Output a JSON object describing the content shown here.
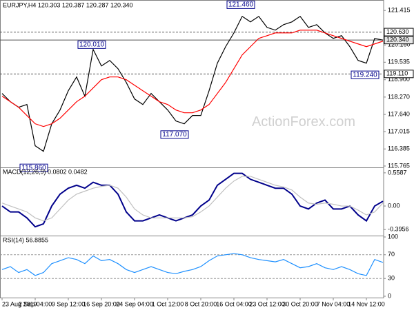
{
  "chart_data": [
    {
      "type": "line",
      "title": "EURJPY,H4  120.303 120.387 120.287 120.340",
      "watermark": "ActionForex.com",
      "categories": [
        "23 Aug 2019",
        null,
        null,
        null,
        "2 Sep 04:00",
        null,
        null,
        null,
        "9 Sep 12:00",
        null,
        null,
        null,
        "16 Sep 20:00",
        null,
        null,
        null,
        "24 Sep 04:00",
        null,
        null,
        null,
        "1 Oct 12:00",
        null,
        null,
        null,
        "8 Oct 20:00",
        null,
        null,
        null,
        "16 Oct 04:00",
        null,
        null,
        null,
        "23 Oct 12:00",
        null,
        null,
        null,
        "30 Oct 20:00",
        null,
        null,
        null,
        "7 Nov 04:00",
        null,
        null,
        null,
        "14 Nov 12:00",
        null,
        null
      ],
      "series": [
        {
          "color": "#000000",
          "values": [
            118.4,
            118.1,
            117.9,
            118.0,
            116.5,
            116.3,
            117.3,
            117.8,
            118.5,
            119.0,
            118.3,
            120.0,
            119.4,
            119.6,
            119.3,
            118.8,
            118.2,
            118.0,
            118.4,
            118.1,
            117.8,
            117.4,
            117.3,
            117.6,
            117.6,
            118.5,
            119.5,
            120.1,
            120.6,
            121.2,
            121.0,
            121.2,
            120.8,
            120.7,
            120.9,
            121.0,
            121.2,
            120.8,
            120.9,
            120.6,
            120.4,
            120.5,
            120.1,
            119.6,
            119.5,
            120.4,
            120.34
          ]
        },
        {
          "color": "#ff0000",
          "values": [
            118.3,
            118.1,
            117.9,
            117.6,
            117.3,
            117.2,
            117.3,
            117.5,
            117.8,
            118.1,
            118.3,
            118.6,
            118.9,
            119.0,
            119.0,
            118.9,
            118.7,
            118.5,
            118.3,
            118.1,
            118.0,
            117.8,
            117.7,
            117.7,
            117.8,
            118.0,
            118.4,
            118.8,
            119.3,
            119.8,
            120.1,
            120.4,
            120.5,
            120.6,
            120.6,
            120.6,
            120.7,
            120.7,
            120.7,
            120.6,
            120.5,
            120.4,
            120.3,
            120.2,
            120.1,
            120.2,
            120.3
          ]
        }
      ],
      "ylim": [
        115.74,
        121.72
      ],
      "yticks": [
        121.415,
        {
          "value": 120.16,
          "label": "120.160"
        },
        119.535,
        {
          "value": 118.9,
          "label": "118.900"
        },
        {
          "value": 118.27,
          "label": "118.270"
        },
        {
          "value": 117.64,
          "label": "117.640"
        },
        117.015,
        116.385,
        115.765
      ],
      "levels": [
        {
          "value": 120.63,
          "label": "120.630",
          "dashed": true
        },
        {
          "value": 120.34,
          "label": "120.340",
          "dashed": false
        },
        {
          "value": 119.11,
          "label": "119.110",
          "dashed": true
        }
      ],
      "annotations": [
        {
          "x": 29,
          "value": 121.46,
          "label": "121.460"
        },
        {
          "x": 11,
          "value": 120.01,
          "label": "120.010"
        },
        {
          "x": 21,
          "value": 117.07,
          "label": "117.070"
        },
        {
          "x": 4,
          "value": 115.86,
          "label": "115.860"
        },
        {
          "x": 44,
          "value": 119.24,
          "label": "119.240"
        }
      ]
    },
    {
      "type": "line",
      "title": "MACD(12,26,9) 0.0802 0.0482",
      "series": [
        {
          "color": "#00008b",
          "values": [
            0.0,
            -0.1,
            -0.1,
            -0.2,
            -0.35,
            -0.3,
            0.0,
            0.2,
            0.3,
            0.35,
            0.3,
            0.4,
            0.35,
            0.35,
            0.2,
            -0.1,
            -0.25,
            -0.25,
            -0.2,
            -0.15,
            -0.2,
            -0.25,
            -0.2,
            -0.15,
            0.0,
            0.1,
            0.35,
            0.45,
            0.55,
            0.55,
            0.45,
            0.4,
            0.35,
            0.3,
            0.3,
            0.2,
            0.0,
            -0.05,
            0.05,
            0.1,
            -0.05,
            -0.05,
            0.0,
            -0.15,
            -0.25,
            0.0,
            0.08
          ]
        },
        {
          "color": "#c0c0c0",
          "values": [
            0.05,
            0.0,
            -0.05,
            -0.1,
            -0.2,
            -0.25,
            -0.2,
            -0.05,
            0.1,
            0.2,
            0.25,
            0.3,
            0.33,
            0.35,
            0.3,
            0.15,
            -0.05,
            -0.15,
            -0.2,
            -0.2,
            -0.2,
            -0.2,
            -0.2,
            -0.18,
            -0.1,
            0.0,
            0.15,
            0.3,
            0.42,
            0.5,
            0.5,
            0.45,
            0.4,
            0.35,
            0.32,
            0.27,
            0.15,
            0.05,
            0.03,
            0.05,
            0.03,
            0.0,
            0.0,
            -0.07,
            -0.15,
            -0.1,
            0.05
          ]
        }
      ],
      "ylim": [
        -0.475,
        0.627
      ],
      "yticks": [
        0.5587,
        {
          "value": 0,
          "label": "0.00"
        },
        -0.3956
      ]
    },
    {
      "type": "line",
      "title": "RSI(14) 56.8855",
      "series": [
        {
          "color": "#1e90ff",
          "values": [
            45,
            50,
            40,
            45,
            35,
            40,
            55,
            60,
            65,
            62,
            55,
            68,
            60,
            62,
            55,
            45,
            40,
            45,
            50,
            45,
            40,
            38,
            42,
            45,
            50,
            60,
            68,
            70,
            72,
            70,
            65,
            62,
            60,
            58,
            62,
            55,
            48,
            50,
            55,
            48,
            45,
            50,
            45,
            38,
            35,
            62,
            57
          ]
        }
      ],
      "ylim": [
        0,
        100
      ],
      "yticks": [
        100,
        70,
        30,
        0
      ],
      "levels": [
        70,
        30
      ]
    }
  ]
}
